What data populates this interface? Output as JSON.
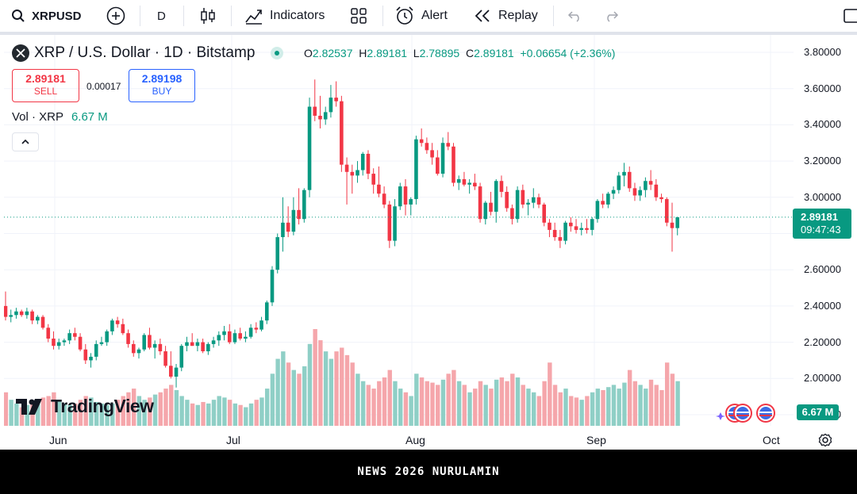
{
  "toolbar": {
    "symbol": "XRPUSD",
    "interval": "D",
    "indicators_label": "Indicators",
    "alert_label": "Alert",
    "replay_label": "Replay"
  },
  "legend": {
    "title": "XRP / U.S. Dollar · 1D · Bitstamp",
    "open_label": "O",
    "open": "2.82537",
    "high_label": "H",
    "high": "2.89181",
    "low_label": "L",
    "low": "2.78895",
    "close_label": "C",
    "close": "2.89181",
    "change": "+0.06654 (+2.36%)",
    "sell_price": "2.89181",
    "sell_label": "SELL",
    "spread": "0.00017",
    "buy_price": "2.89198",
    "buy_label": "BUY",
    "vol_label": "Vol · XRP",
    "vol_value": "6.67 M"
  },
  "price_axis": {
    "labels": [
      "3.80000",
      "3.60000",
      "3.40000",
      "3.20000",
      "3.00000",
      "2.80000",
      "2.60000",
      "2.40000",
      "2.20000",
      "2.00000",
      "1.80000"
    ],
    "current_price": "2.89181",
    "countdown": "09:47:43",
    "vol_badge": "6.67 M"
  },
  "time_axis": {
    "labels": [
      "Jun",
      "Jul",
      "Aug",
      "Sep",
      "Oct"
    ]
  },
  "logo_text": "TradingView",
  "footer_text": "NEWS 2026 NURULAMIN",
  "colors": {
    "up": "#089981",
    "down": "#f23645",
    "up_vol": "#8fcfc6",
    "down_vol": "#f5a6ab"
  },
  "chart_data": {
    "type": "candlestick",
    "ylim": [
      1.8,
      3.8
    ],
    "x_ticks": [
      "Jun",
      "Jul",
      "Aug",
      "Sep",
      "Oct"
    ],
    "candles": [
      [
        2.4,
        2.48,
        2.32,
        2.34
      ],
      [
        2.34,
        2.38,
        2.31,
        2.35
      ],
      [
        2.35,
        2.39,
        2.33,
        2.37
      ],
      [
        2.37,
        2.38,
        2.34,
        2.35
      ],
      [
        2.35,
        2.39,
        2.33,
        2.37
      ],
      [
        2.37,
        2.38,
        2.3,
        2.32
      ],
      [
        2.32,
        2.35,
        2.3,
        2.34
      ],
      [
        2.34,
        2.35,
        2.27,
        2.28
      ],
      [
        2.28,
        2.3,
        2.2,
        2.22
      ],
      [
        2.22,
        2.26,
        2.16,
        2.18
      ],
      [
        2.18,
        2.22,
        2.16,
        2.2
      ],
      [
        2.2,
        2.22,
        2.18,
        2.21
      ],
      [
        2.21,
        2.27,
        2.19,
        2.25
      ],
      [
        2.25,
        2.28,
        2.21,
        2.23
      ],
      [
        2.23,
        2.25,
        2.15,
        2.16
      ],
      [
        2.16,
        2.19,
        2.08,
        2.1
      ],
      [
        2.1,
        2.14,
        2.06,
        2.12
      ],
      [
        2.12,
        2.21,
        2.1,
        2.19
      ],
      [
        2.19,
        2.23,
        2.18,
        2.2
      ],
      [
        2.2,
        2.27,
        2.18,
        2.26
      ],
      [
        2.26,
        2.33,
        2.24,
        2.32
      ],
      [
        2.32,
        2.34,
        2.28,
        2.3
      ],
      [
        2.3,
        2.33,
        2.24,
        2.25
      ],
      [
        2.25,
        2.27,
        2.17,
        2.19
      ],
      [
        2.19,
        2.21,
        2.12,
        2.14
      ],
      [
        2.14,
        2.17,
        2.11,
        2.16
      ],
      [
        2.16,
        2.25,
        2.15,
        2.24
      ],
      [
        2.24,
        2.28,
        2.16,
        2.17
      ],
      [
        2.17,
        2.21,
        2.11,
        2.19
      ],
      [
        2.19,
        2.22,
        2.13,
        2.15
      ],
      [
        2.15,
        2.18,
        2.06,
        2.07
      ],
      [
        2.07,
        2.15,
        2.0,
        2.01
      ],
      [
        2.01,
        2.08,
        1.95,
        2.06
      ],
      [
        2.06,
        2.19,
        2.04,
        2.18
      ],
      [
        2.18,
        2.23,
        2.15,
        2.2
      ],
      [
        2.2,
        2.25,
        2.18,
        2.18
      ],
      [
        2.18,
        2.22,
        2.15,
        2.2
      ],
      [
        2.2,
        2.22,
        2.14,
        2.15
      ],
      [
        2.15,
        2.2,
        2.13,
        2.19
      ],
      [
        2.19,
        2.23,
        2.17,
        2.21
      ],
      [
        2.21,
        2.26,
        2.18,
        2.24
      ],
      [
        2.24,
        2.29,
        2.21,
        2.26
      ],
      [
        2.26,
        2.3,
        2.19,
        2.2
      ],
      [
        2.2,
        2.27,
        2.19,
        2.25
      ],
      [
        2.25,
        2.28,
        2.21,
        2.22
      ],
      [
        2.22,
        2.26,
        2.2,
        2.23
      ],
      [
        2.23,
        2.3,
        2.22,
        2.28
      ],
      [
        2.28,
        2.31,
        2.25,
        2.27
      ],
      [
        2.27,
        2.34,
        2.26,
        2.32
      ],
      [
        2.32,
        2.43,
        2.3,
        2.42
      ],
      [
        2.42,
        2.62,
        2.4,
        2.6
      ],
      [
        2.6,
        2.8,
        2.58,
        2.78
      ],
      [
        2.78,
        3.0,
        2.7,
        2.86
      ],
      [
        2.86,
        2.95,
        2.78,
        2.81
      ],
      [
        2.81,
        3.0,
        2.79,
        2.93
      ],
      [
        2.93,
        3.05,
        2.85,
        2.88
      ],
      [
        2.88,
        3.05,
        2.86,
        3.04
      ],
      [
        3.04,
        3.55,
        3.0,
        3.5
      ],
      [
        3.5,
        3.65,
        3.42,
        3.45
      ],
      [
        3.45,
        3.56,
        3.38,
        3.43
      ],
      [
        3.43,
        3.5,
        3.4,
        3.47
      ],
      [
        3.47,
        3.62,
        3.44,
        3.55
      ],
      [
        3.55,
        3.64,
        3.5,
        3.53
      ],
      [
        3.53,
        3.56,
        3.14,
        3.18
      ],
      [
        3.18,
        3.22,
        2.96,
        3.14
      ],
      [
        3.14,
        3.18,
        3.02,
        3.12
      ],
      [
        3.12,
        3.2,
        3.08,
        3.15
      ],
      [
        3.15,
        3.25,
        3.12,
        3.24
      ],
      [
        3.24,
        3.26,
        3.1,
        3.13
      ],
      [
        3.13,
        3.16,
        3.02,
        3.07
      ],
      [
        3.07,
        3.17,
        3.0,
        3.02
      ],
      [
        3.02,
        3.06,
        2.94,
        2.96
      ],
      [
        2.96,
        2.98,
        2.72,
        2.76
      ],
      [
        2.76,
        2.99,
        2.73,
        2.95
      ],
      [
        2.95,
        3.08,
        2.93,
        3.06
      ],
      [
        3.06,
        3.1,
        2.9,
        2.96
      ],
      [
        2.96,
        3.0,
        2.9,
        2.99
      ],
      [
        2.99,
        3.34,
        2.96,
        3.32
      ],
      [
        3.32,
        3.38,
        3.28,
        3.3
      ],
      [
        3.3,
        3.33,
        3.24,
        3.26
      ],
      [
        3.26,
        3.3,
        3.18,
        3.22
      ],
      [
        3.22,
        3.26,
        3.12,
        3.13
      ],
      [
        3.13,
        3.33,
        3.11,
        3.3
      ],
      [
        3.3,
        3.36,
        3.26,
        3.28
      ],
      [
        3.28,
        3.3,
        3.06,
        3.08
      ],
      [
        3.08,
        3.12,
        3.04,
        3.1
      ],
      [
        3.1,
        3.14,
        3.06,
        3.07
      ],
      [
        3.07,
        3.1,
        3.02,
        3.08
      ],
      [
        3.08,
        3.13,
        3.04,
        3.06
      ],
      [
        3.06,
        3.08,
        2.86,
        2.88
      ],
      [
        2.88,
        2.98,
        2.85,
        2.97
      ],
      [
        2.97,
        3.03,
        2.9,
        2.92
      ],
      [
        2.92,
        3.1,
        2.86,
        3.09
      ],
      [
        3.09,
        3.12,
        3.0,
        3.03
      ],
      [
        3.03,
        3.06,
        2.92,
        2.94
      ],
      [
        2.94,
        2.96,
        2.85,
        2.88
      ],
      [
        2.88,
        3.06,
        2.86,
        3.04
      ],
      [
        3.04,
        3.07,
        2.94,
        2.96
      ],
      [
        2.96,
        2.99,
        2.9,
        2.97
      ],
      [
        2.97,
        3.05,
        2.94,
        3.0
      ],
      [
        3.0,
        3.02,
        2.94,
        2.96
      ],
      [
        2.96,
        2.97,
        2.84,
        2.86
      ],
      [
        2.86,
        2.88,
        2.78,
        2.82
      ],
      [
        2.82,
        2.86,
        2.76,
        2.78
      ],
      [
        2.78,
        2.82,
        2.72,
        2.76
      ],
      [
        2.76,
        2.87,
        2.74,
        2.86
      ],
      [
        2.86,
        2.89,
        2.81,
        2.84
      ],
      [
        2.84,
        2.88,
        2.8,
        2.82
      ],
      [
        2.82,
        2.86,
        2.79,
        2.83
      ],
      [
        2.83,
        2.88,
        2.8,
        2.82
      ],
      [
        2.82,
        2.89,
        2.79,
        2.88
      ],
      [
        2.88,
        2.99,
        2.86,
        2.98
      ],
      [
        2.98,
        3.02,
        2.94,
        2.96
      ],
      [
        2.96,
        3.03,
        2.94,
        3.02
      ],
      [
        3.02,
        3.06,
        2.99,
        3.04
      ],
      [
        3.04,
        3.14,
        3.02,
        3.12
      ],
      [
        3.12,
        3.19,
        3.06,
        3.14
      ],
      [
        3.14,
        3.17,
        3.03,
        3.05
      ],
      [
        3.05,
        3.08,
        2.98,
        3.01
      ],
      [
        3.01,
        3.06,
        2.98,
        3.04
      ],
      [
        3.04,
        3.11,
        3.0,
        3.09
      ],
      [
        3.09,
        3.15,
        3.04,
        3.07
      ],
      [
        3.07,
        3.1,
        2.98,
        3.0
      ],
      [
        3.0,
        3.02,
        2.97,
        2.99
      ],
      [
        2.99,
        3.0,
        2.84,
        2.86
      ],
      [
        2.86,
        2.97,
        2.7,
        2.83
      ],
      [
        2.83,
        2.89,
        2.79,
        2.89
      ]
    ],
    "volumes": [
      0.45,
      0.35,
      0.3,
      0.25,
      0.28,
      0.3,
      0.32,
      0.38,
      0.4,
      0.45,
      0.35,
      0.3,
      0.28,
      0.3,
      0.35,
      0.4,
      0.38,
      0.32,
      0.3,
      0.28,
      0.3,
      0.35,
      0.4,
      0.45,
      0.5,
      0.4,
      0.35,
      0.38,
      0.42,
      0.45,
      0.5,
      0.55,
      0.48,
      0.4,
      0.35,
      0.3,
      0.28,
      0.32,
      0.3,
      0.35,
      0.4,
      0.38,
      0.35,
      0.3,
      0.28,
      0.25,
      0.3,
      0.35,
      0.38,
      0.5,
      0.7,
      0.9,
      1.0,
      0.85,
      0.75,
      0.7,
      0.8,
      1.1,
      1.3,
      1.15,
      1.0,
      0.9,
      1.0,
      1.05,
      0.95,
      0.85,
      0.7,
      0.6,
      0.55,
      0.5,
      0.6,
      0.65,
      0.75,
      0.6,
      0.5,
      0.45,
      0.4,
      0.7,
      0.65,
      0.6,
      0.58,
      0.55,
      0.62,
      0.7,
      0.75,
      0.6,
      0.55,
      0.45,
      0.5,
      0.6,
      0.55,
      0.5,
      0.62,
      0.65,
      0.6,
      0.7,
      0.65,
      0.55,
      0.5,
      0.45,
      0.4,
      0.6,
      0.85,
      0.55,
      0.45,
      0.5,
      0.4,
      0.38,
      0.35,
      0.4,
      0.45,
      0.5,
      0.48,
      0.52,
      0.55,
      0.5,
      0.58,
      0.75,
      0.6,
      0.55,
      0.5,
      0.62,
      0.55,
      0.48,
      0.85,
      0.7,
      0.6
    ]
  }
}
